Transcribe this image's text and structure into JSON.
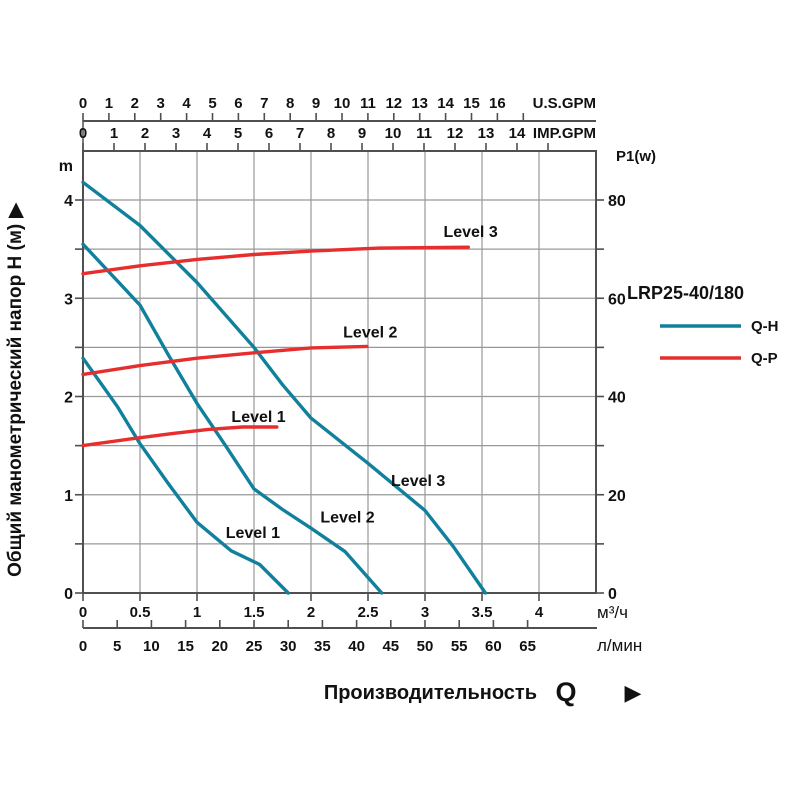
{
  "colors": {
    "qh_teal": "#11809c",
    "qp_red": "#e62e2e",
    "grid": "#989898",
    "border": "#4f4f4f",
    "text": "#111111"
  },
  "left_axis": {
    "title": "Общий манометрический напор Н (м)",
    "arrow": "▶",
    "unit": "m"
  },
  "right_axis": {
    "title": "P1(w)"
  },
  "bottom": {
    "title": "Производительность",
    "symbol": "Q",
    "arrow": "▶"
  },
  "legend": {
    "model": "LRP25-40/180",
    "items": [
      {
        "label": "Q-H",
        "color": "#11809c"
      },
      {
        "label": "Q-P",
        "color": "#e62e2e"
      }
    ]
  },
  "chart_data": {
    "type": "line",
    "title": "LRP25-40/180 circulation pump performance curves",
    "grid": true,
    "x_axes": [
      {
        "id": "us_gpm",
        "label": "U.S.GPM",
        "tick_labels": [
          "0",
          "1",
          "2",
          "3",
          "4",
          "5",
          "6",
          "7",
          "8",
          "9",
          "10",
          "11",
          "12",
          "13",
          "14",
          "15",
          "16",
          ""
        ]
      },
      {
        "id": "imp_gpm",
        "label": "IMP.GPM",
        "tick_labels": [
          "0",
          "1",
          "2",
          "3",
          "4",
          "5",
          "6",
          "7",
          "8",
          "9",
          "10",
          "11",
          "12",
          "13",
          "14",
          ""
        ]
      },
      {
        "id": "m3h",
        "label": "м³/ч",
        "tick_labels": [
          "0",
          "0.5",
          "1",
          "1.5",
          "2",
          "2.5",
          "3",
          "3.5",
          "4"
        ]
      },
      {
        "id": "lmin",
        "label": "л/мин",
        "tick_labels": [
          "0",
          "5",
          "10",
          "15",
          "20",
          "25",
          "30",
          "35",
          "40",
          "45",
          "50",
          "55",
          "60",
          "65"
        ]
      }
    ],
    "y_axes": [
      {
        "id": "head",
        "label": "m",
        "tick_labels": [
          "0",
          "1",
          "2",
          "3",
          "4"
        ],
        "range": [
          0,
          4.5
        ],
        "minor_step": 0.5
      },
      {
        "id": "power",
        "label": "P1(w)",
        "tick_labels": [
          "0",
          "20",
          "40",
          "60",
          "80"
        ],
        "range": [
          0,
          90
        ],
        "minor_step": 10
      }
    ],
    "series": [
      {
        "id": "qh-level1",
        "name": "Q-H Level 1",
        "yaxis": "head",
        "color": "#11809c",
        "points": [
          [
            0,
            2.39
          ],
          [
            0.3,
            1.9
          ],
          [
            0.5,
            1.52
          ],
          [
            0.75,
            1.11
          ],
          [
            1.0,
            0.72
          ],
          [
            1.3,
            0.43
          ],
          [
            1.55,
            0.29
          ],
          [
            1.8,
            0
          ]
        ]
      },
      {
        "id": "qh-level2",
        "name": "Q-H Level 2",
        "yaxis": "head",
        "color": "#11809c",
        "points": [
          [
            0,
            3.55
          ],
          [
            0.5,
            2.93
          ],
          [
            0.75,
            2.42
          ],
          [
            1.0,
            1.93
          ],
          [
            1.25,
            1.5
          ],
          [
            1.5,
            1.06
          ],
          [
            1.75,
            0.85
          ],
          [
            2.0,
            0.66
          ],
          [
            2.3,
            0.42
          ],
          [
            2.62,
            0
          ]
        ]
      },
      {
        "id": "qh-level3",
        "name": "Q-H Level 3",
        "yaxis": "head",
        "color": "#11809c",
        "points": [
          [
            0,
            4.18
          ],
          [
            0.5,
            3.74
          ],
          [
            1.0,
            3.16
          ],
          [
            1.5,
            2.5
          ],
          [
            1.75,
            2.12
          ],
          [
            2.0,
            1.78
          ],
          [
            2.5,
            1.32
          ],
          [
            3.0,
            0.84
          ],
          [
            3.25,
            0.47
          ],
          [
            3.53,
            0
          ]
        ]
      },
      {
        "id": "qp-level1",
        "name": "Q-P Level 1",
        "yaxis": "power",
        "color": "#e62e2e",
        "points": [
          [
            0,
            30
          ],
          [
            0.4,
            31.3
          ],
          [
            0.8,
            32.5
          ],
          [
            1.1,
            33.3
          ],
          [
            1.4,
            33.8
          ],
          [
            1.7,
            33.8
          ]
        ]
      },
      {
        "id": "qp-level2",
        "name": "Q-P Level 2",
        "yaxis": "power",
        "color": "#e62e2e",
        "points": [
          [
            0,
            44.5
          ],
          [
            0.5,
            46.3
          ],
          [
            1.0,
            47.8
          ],
          [
            1.5,
            48.9
          ],
          [
            2.0,
            49.9
          ],
          [
            2.49,
            50.2
          ]
        ]
      },
      {
        "id": "qp-level3",
        "name": "Q-P Level 3",
        "yaxis": "power",
        "color": "#e62e2e",
        "points": [
          [
            0,
            65
          ],
          [
            0.5,
            66.6
          ],
          [
            1.0,
            67.9
          ],
          [
            1.5,
            68.9
          ],
          [
            2.0,
            69.6
          ],
          [
            2.6,
            70.2
          ],
          [
            3.38,
            70.4
          ]
        ]
      }
    ],
    "annotations": [
      {
        "text": "Level 3",
        "yaxis": "power",
        "q": 3.4,
        "v": 73.5,
        "color": "#e62e2e"
      },
      {
        "text": "Level 2",
        "yaxis": "power",
        "q": 2.52,
        "v": 53.0,
        "color": "#e62e2e"
      },
      {
        "text": "Level 1",
        "yaxis": "power",
        "q": 1.54,
        "v": 35.8,
        "color": "#e62e2e"
      },
      {
        "text": "Level 3",
        "yaxis": "head",
        "q": 2.94,
        "v": 1.14,
        "color": "#11809c"
      },
      {
        "text": "Level 2",
        "yaxis": "head",
        "q": 2.32,
        "v": 0.77,
        "color": "#11809c"
      },
      {
        "text": "Level 1",
        "yaxis": "head",
        "q": 1.49,
        "v": 0.61,
        "color": "#11809c"
      }
    ]
  }
}
